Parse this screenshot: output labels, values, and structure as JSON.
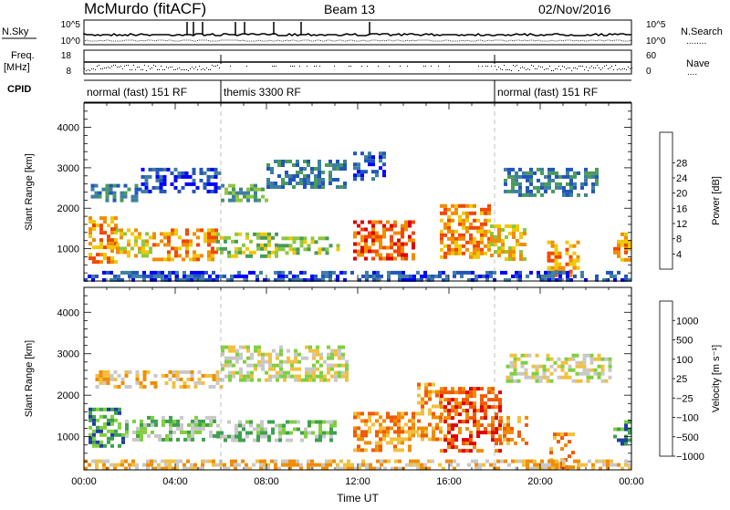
{
  "header": {
    "station": "McMurdo (fitACF)",
    "beam": "Beam 13",
    "date": "02/Nov/2016"
  },
  "strip_labels": {
    "nsky": "N.Sky",
    "nsearch": "N.Search",
    "nsearch_dots": "........",
    "freq": "Freq.",
    "mhz": "[MHz]",
    "nave": "Nave",
    "nave_dots": "....",
    "cpid": "CPID",
    "noise_ticks_left": [
      "10^5",
      "10^0"
    ],
    "noise_ticks_right": [
      "10^5",
      "10^0"
    ],
    "freq_ticks": [
      "18",
      "8"
    ],
    "nave_ticks": [
      "60",
      "0"
    ]
  },
  "cpid_segments": [
    {
      "label": "normal (fast) 151 RF",
      "start_hour": 0,
      "end_hour": 6
    },
    {
      "label": "themis 3300 RF",
      "start_hour": 6,
      "end_hour": 18
    },
    {
      "label": "normal (fast) 151 RF",
      "start_hour": 18,
      "end_hour": 24
    }
  ],
  "colors": {
    "power_scale": [
      "#0000ff",
      "#2255bb",
      "#3f7f9f",
      "#4a9a5a",
      "#8ec63f",
      "#f0c800",
      "#f08c00",
      "#f04800",
      "#dd0000"
    ],
    "velocity_scale": [
      "#1f3f9f",
      "#3fa04f",
      "#7fcf3f",
      "#c8c8c8",
      "#f0c040",
      "#f08c00",
      "#f05a00",
      "#e00000"
    ]
  },
  "chart_data": [
    {
      "type": "heatmap",
      "ylabel": "Slant Range [km]",
      "xlabel": "",
      "x_ticks": [
        "00:00",
        "04:00",
        "08:00",
        "12:00",
        "16:00",
        "20:00",
        "00:00"
      ],
      "xlim_hours": [
        0,
        24
      ],
      "y_ticks": [
        1000,
        2000,
        3000,
        4000
      ],
      "ylim": [
        200,
        4600
      ],
      "colorbar_label": "Power [dB]",
      "colorbar_ticks": [
        4,
        8,
        12,
        16,
        20,
        24,
        28
      ],
      "bands": [
        {
          "t0": 0.2,
          "t1": 1.4,
          "r0": 700,
          "r1": 1800,
          "level": 6
        },
        {
          "t0": 1.4,
          "t1": 3.0,
          "r0": 850,
          "r1": 1500,
          "level": 5
        },
        {
          "t0": 3.0,
          "t1": 5.8,
          "r0": 700,
          "r1": 1500,
          "level": 6
        },
        {
          "t0": 5.8,
          "t1": 8.5,
          "r0": 850,
          "r1": 1400,
          "level": 4
        },
        {
          "t0": 8.5,
          "t1": 11.2,
          "r0": 850,
          "r1": 1300,
          "level": 4
        },
        {
          "t0": 11.8,
          "t1": 14.4,
          "r0": 750,
          "r1": 1700,
          "level": 7
        },
        {
          "t0": 15.6,
          "t1": 17.8,
          "r0": 800,
          "r1": 2100,
          "level": 6
        },
        {
          "t0": 17.8,
          "t1": 19.4,
          "r0": 700,
          "r1": 1600,
          "level": 5
        },
        {
          "t0": 20.3,
          "t1": 21.6,
          "r0": 300,
          "r1": 1200,
          "level": 6
        },
        {
          "t0": 23.2,
          "t1": 24.0,
          "r0": 700,
          "r1": 1400,
          "level": 6
        },
        {
          "t0": 0.3,
          "t1": 2.5,
          "r0": 2200,
          "r1": 2600,
          "level": 2
        },
        {
          "t0": 2.5,
          "t1": 6.0,
          "r0": 2400,
          "r1": 3000,
          "level": 1
        },
        {
          "t0": 6.0,
          "t1": 8.0,
          "r0": 2200,
          "r1": 2600,
          "level": 3
        },
        {
          "t0": 8.0,
          "t1": 11.5,
          "r0": 2500,
          "r1": 3200,
          "level": 2
        },
        {
          "t0": 11.8,
          "t1": 13.2,
          "r0": 2700,
          "r1": 3400,
          "level": 1
        },
        {
          "t0": 18.4,
          "t1": 22.5,
          "r0": 2300,
          "r1": 3000,
          "level": 2
        },
        {
          "t0": 0.0,
          "t1": 24.0,
          "r0": 250,
          "r1": 450,
          "level": 1
        }
      ]
    },
    {
      "type": "heatmap",
      "ylabel": "Slant Range [km]",
      "xlabel": "Time UT",
      "x_ticks": [
        "00:00",
        "04:00",
        "08:00",
        "12:00",
        "16:00",
        "20:00",
        "00:00"
      ],
      "xlim_hours": [
        0,
        24
      ],
      "y_ticks": [
        1000,
        2000,
        3000,
        4000
      ],
      "ylim": [
        200,
        4600
      ],
      "colorbar_label": "Velocity [m s⁻¹]",
      "colorbar_ticks": [
        "1000",
        "500",
        "100",
        "25",
        "−25",
        "−100",
        "−500",
        "−1000"
      ],
      "bands": [
        {
          "t0": 0.2,
          "t1": 1.8,
          "r0": 800,
          "r1": 1700,
          "level": 1
        },
        {
          "t0": 1.8,
          "t1": 5.8,
          "r0": 900,
          "r1": 1500,
          "level": 2
        },
        {
          "t0": 5.8,
          "t1": 11.0,
          "r0": 900,
          "r1": 1400,
          "level": 2
        },
        {
          "t0": 11.8,
          "t1": 14.6,
          "r0": 700,
          "r1": 1600,
          "level": 5
        },
        {
          "t0": 14.6,
          "t1": 15.6,
          "r0": 900,
          "r1": 2300,
          "level": 5
        },
        {
          "t0": 15.6,
          "t1": 18.2,
          "r0": 700,
          "r1": 2200,
          "level": 6
        },
        {
          "t0": 18.2,
          "t1": 19.4,
          "r0": 800,
          "r1": 1500,
          "level": 5
        },
        {
          "t0": 20.4,
          "t1": 21.4,
          "r0": 300,
          "r1": 1100,
          "level": 5
        },
        {
          "t0": 23.2,
          "t1": 24.0,
          "r0": 800,
          "r1": 1400,
          "level": 1
        },
        {
          "t0": 0.5,
          "t1": 6.0,
          "r0": 2200,
          "r1": 2600,
          "level": 4
        },
        {
          "t0": 6.0,
          "t1": 11.5,
          "r0": 2400,
          "r1": 3200,
          "level": 3
        },
        {
          "t0": 18.5,
          "t1": 23.0,
          "r0": 2300,
          "r1": 3000,
          "level": 3
        },
        {
          "t0": 0.0,
          "t1": 24.0,
          "r0": 250,
          "r1": 450,
          "level": 4
        }
      ]
    }
  ]
}
